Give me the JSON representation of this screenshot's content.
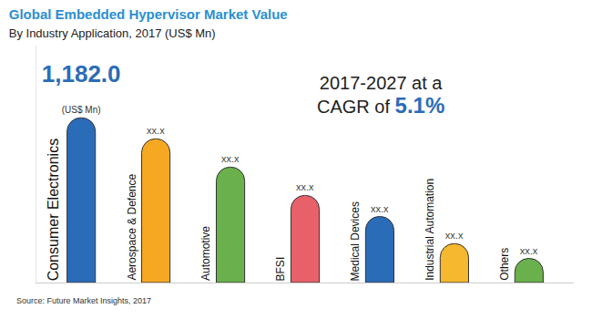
{
  "chart_data": {
    "type": "bar",
    "title": "Global Embedded Hypervisor Market Value",
    "subtitle": "By Industry Application, 2017 (US$ Mn)",
    "categories": [
      "Consumer Electronics",
      "Aerospace & Defence",
      "Automotive",
      "BFSI",
      "Medical Devices",
      "Industrial Automation",
      "Others"
    ],
    "values": [
      1182.0,
      1031,
      828,
      625,
      474,
      279,
      173
    ],
    "value_labels": [
      "1,182.0",
      "xx.x",
      "xx.x",
      "xx.x",
      "xx.x",
      "xx.x",
      "xx.x"
    ],
    "unit_label": "(US$ Mn)",
    "colors": [
      "#2b6cb8",
      "#f7a823",
      "#6ab04c",
      "#e8606a",
      "#2b6cb8",
      "#f5b82e",
      "#6ab04c"
    ],
    "data_labels": true,
    "tick_labels": false,
    "grid": false,
    "ylim": [
      0,
      1700
    ],
    "annotation": [
      "2017-2027 at a",
      "CAGR of",
      "5.1%"
    ],
    "source": "Source: Future Market Insights, 2017"
  }
}
